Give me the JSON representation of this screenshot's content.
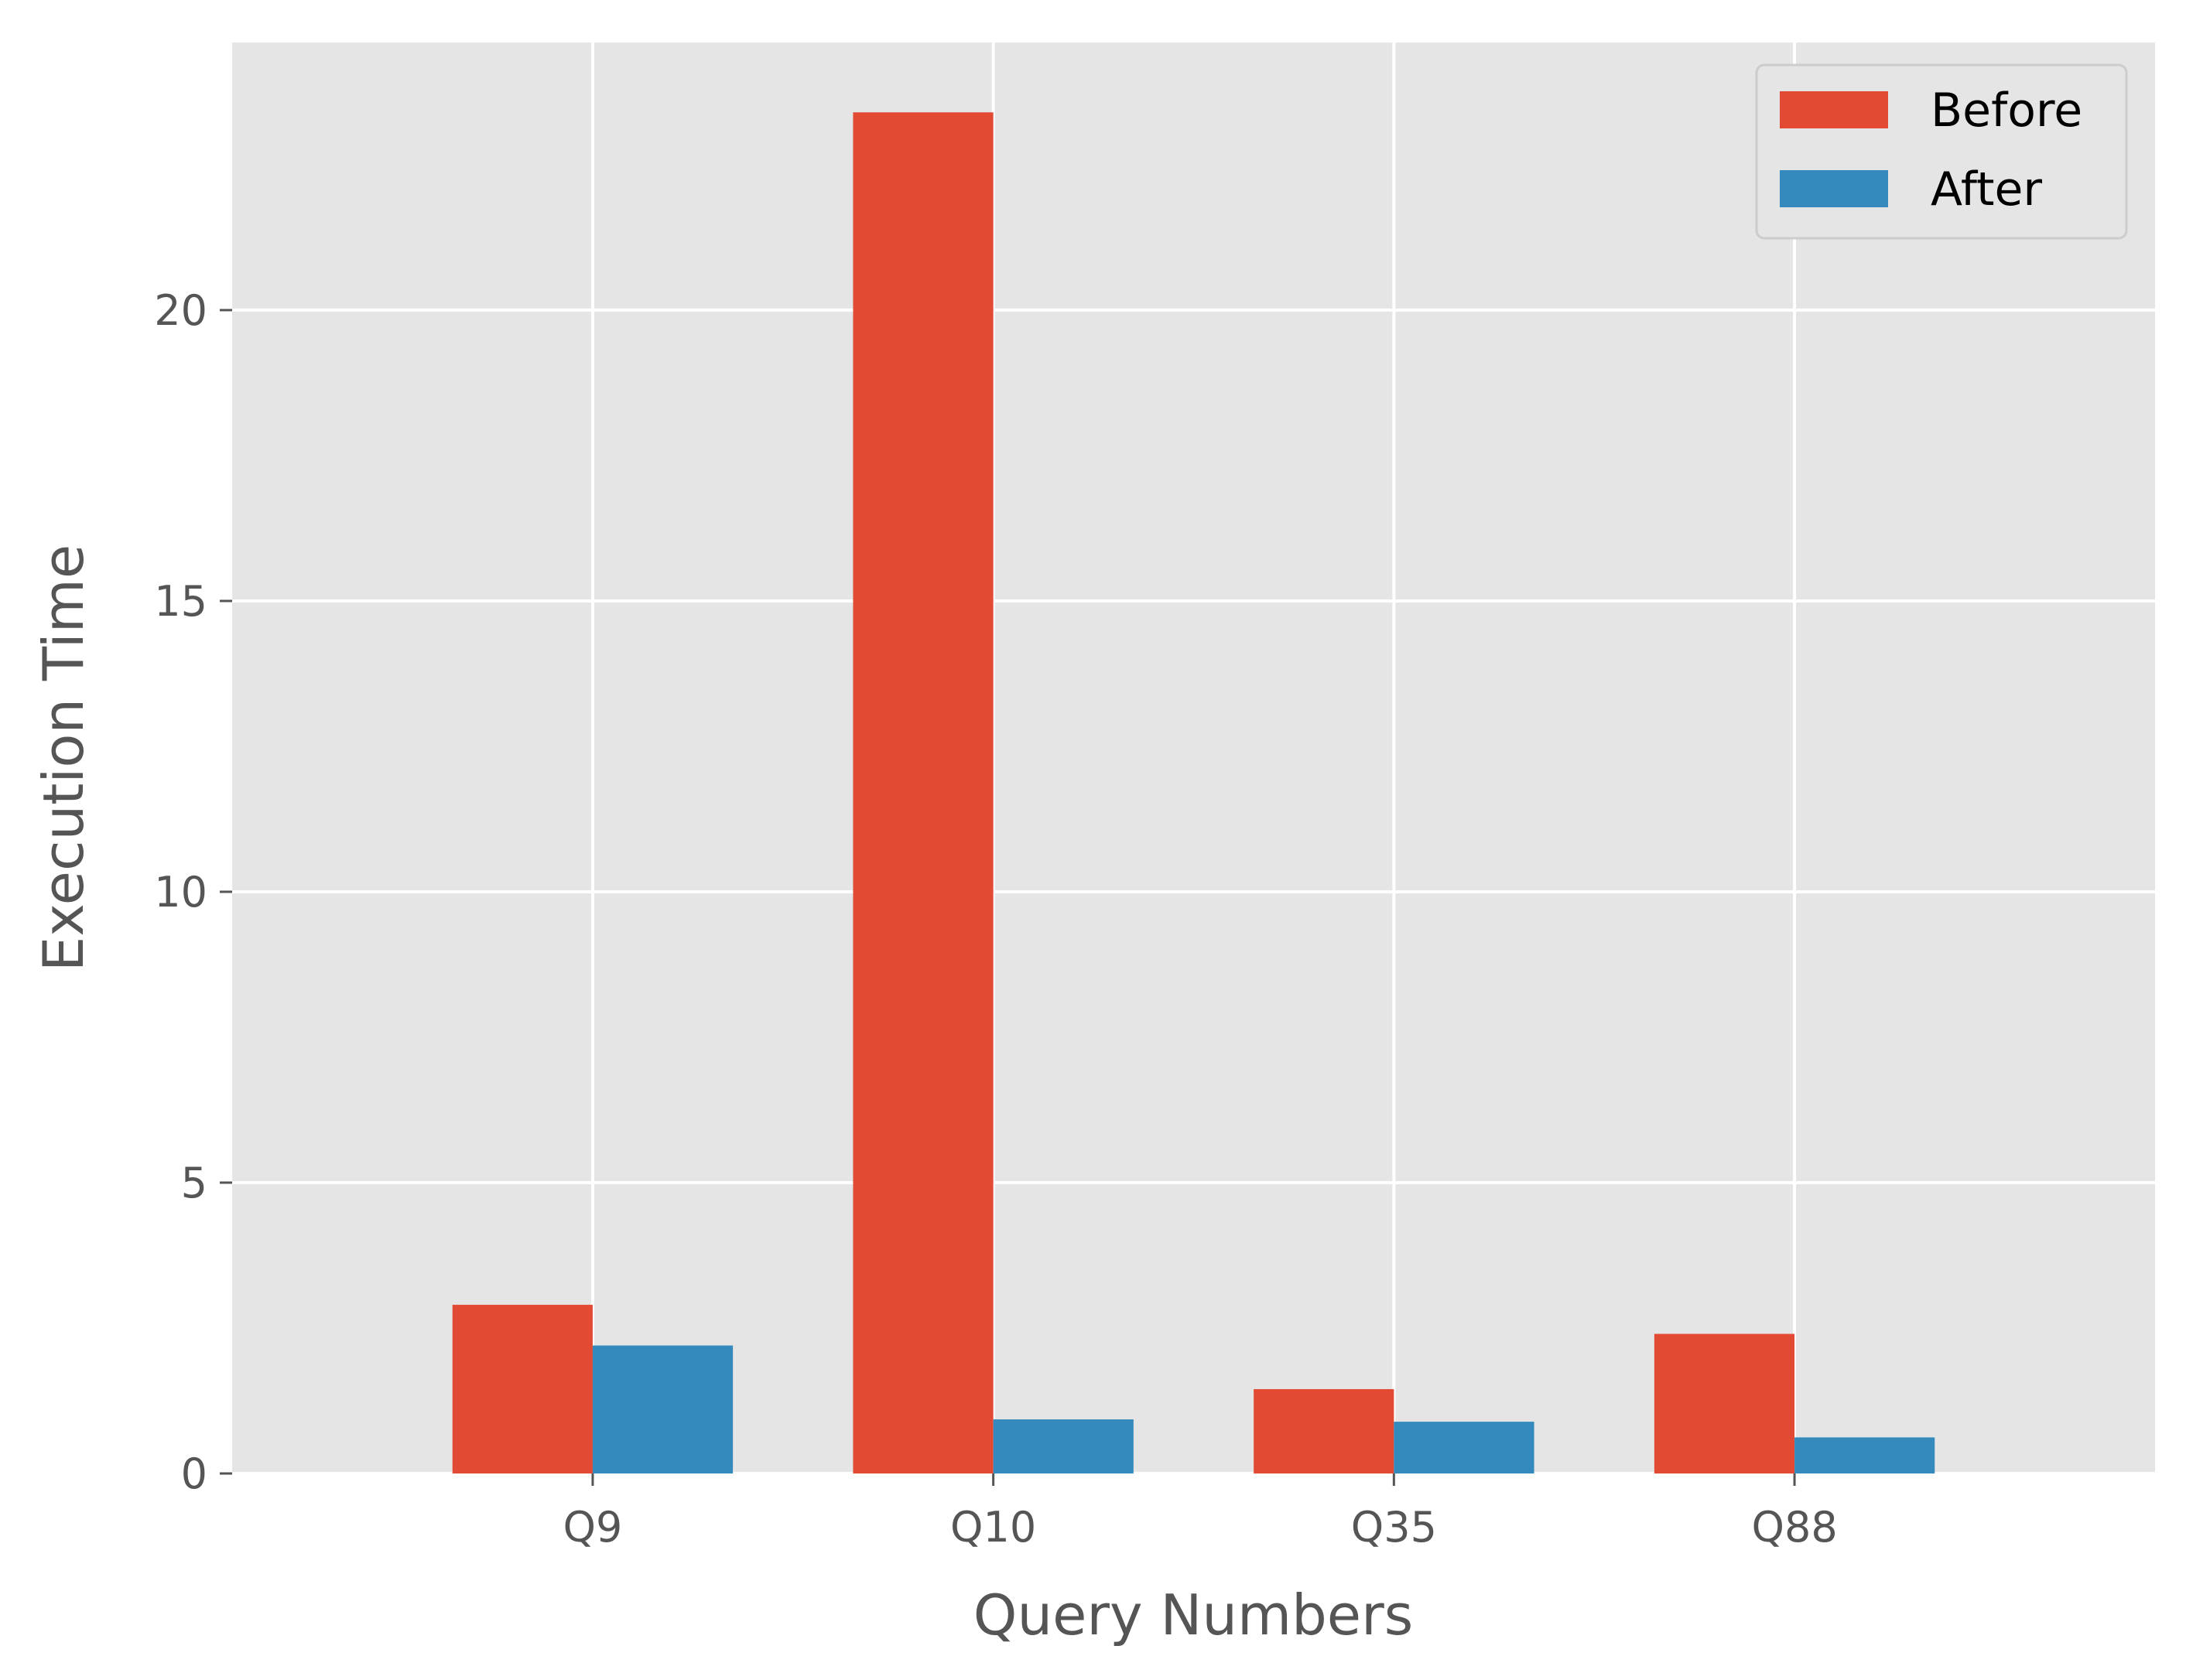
{
  "chart_data": {
    "type": "bar",
    "title": "",
    "xlabel": "Query Numbers",
    "ylabel": "Execution Time",
    "categories": [
      "Q9",
      "Q10",
      "Q35",
      "Q88"
    ],
    "series": [
      {
        "name": "Before",
        "color": "#E24A33",
        "values": [
          2.9,
          23.4,
          1.45,
          2.4
        ]
      },
      {
        "name": "After",
        "color": "#348ABD",
        "values": [
          2.2,
          0.93,
          0.89,
          0.62
        ]
      }
    ],
    "ylim": [
      0,
      24.6
    ],
    "yticks": [
      0,
      5,
      10,
      15,
      20
    ],
    "grid": true,
    "legend": "top-right",
    "style": {
      "background": "#E5E5E5",
      "grid_color": "#FFFFFF"
    }
  }
}
